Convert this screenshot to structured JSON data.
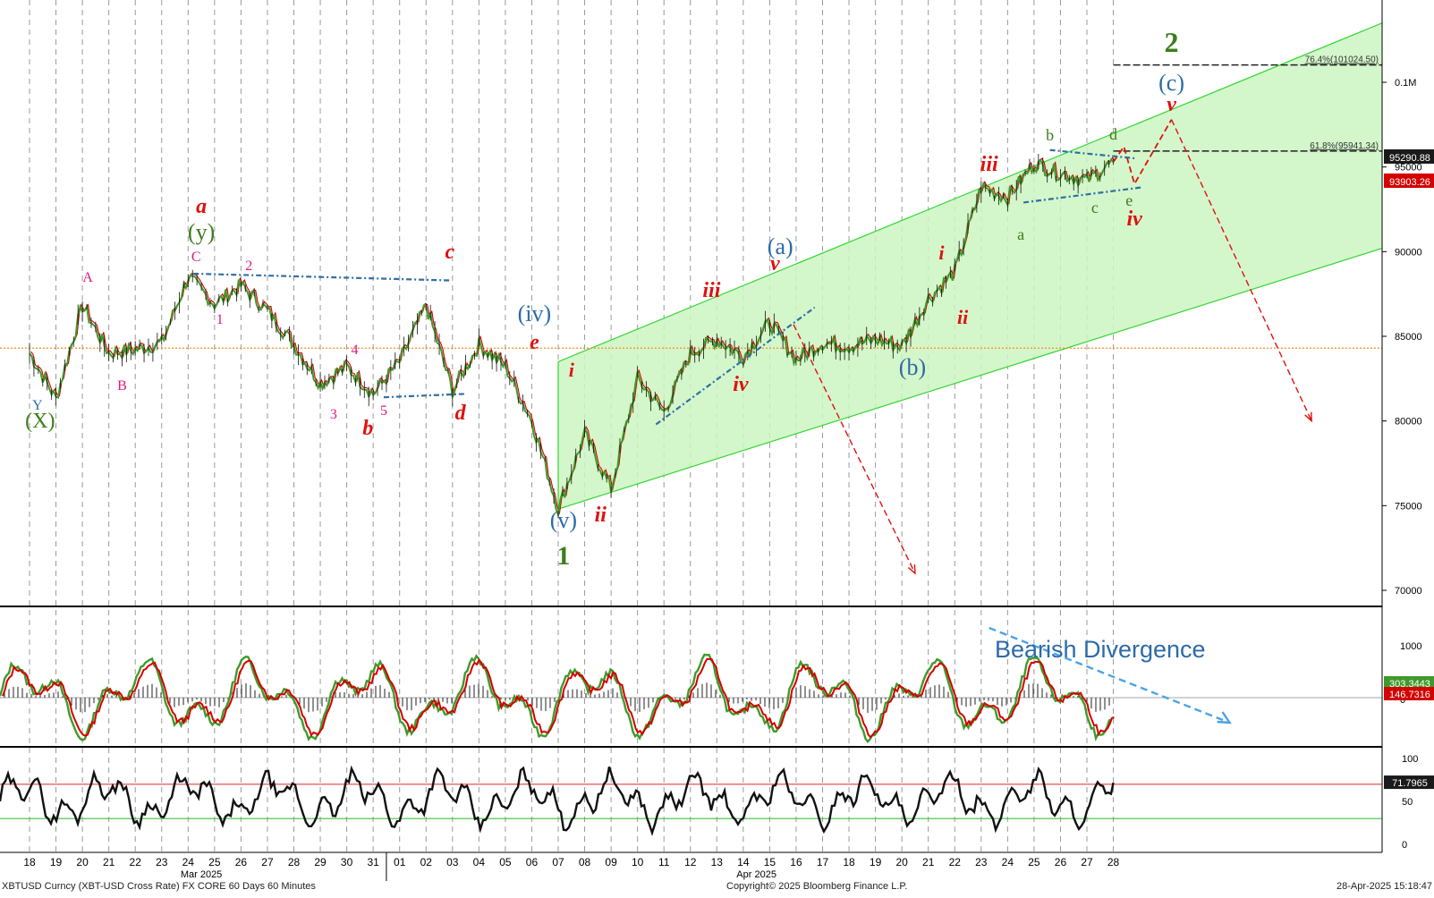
{
  "colors": {
    "price_line": "#3f9a2b",
    "price_red": "#d40000",
    "channel_fill": "#ccf5c2",
    "channel_line": "#33d633",
    "wave_red": "#e0100f",
    "wave_green": "#3d7d1a",
    "wave_blue": "#2c6ba8",
    "wave_pink": "#e0197d",
    "fib_line": "#222222",
    "support_line": "#ff8c1a",
    "trend_blue": "#2f6fa3",
    "divergence": "#4aa3e8",
    "rsi_upper": "#e04040",
    "rsi_lower": "#40c040"
  },
  "chart_data": [
    {
      "type": "line",
      "panel": "price",
      "series": [
        {
          "values": [
            {
              "x": "18",
              "y": 84000
            },
            {
              "x": "19",
              "y": 81300
            },
            {
              "x": "20",
              "y": 86800
            },
            {
              "x": "21",
              "y": 84000
            },
            {
              "x": "22",
              "y": 84200
            },
            {
              "x": "23",
              "y": 84600
            },
            {
              "x": "24",
              "y": 88500
            },
            {
              "x": "25",
              "y": 86900
            },
            {
              "x": "26",
              "y": 88000
            },
            {
              "x": "27",
              "y": 86500
            },
            {
              "x": "28",
              "y": 84500
            },
            {
              "x": "29",
              "y": 82200
            },
            {
              "x": "30",
              "y": 83200
            },
            {
              "x": "31",
              "y": 81600
            },
            {
              "x": "01",
              "y": 83500
            },
            {
              "x": "02",
              "y": 86800
            },
            {
              "x": "03",
              "y": 81800
            },
            {
              "x": "04",
              "y": 84500
            },
            {
              "x": "05",
              "y": 83200
            },
            {
              "x": "06",
              "y": 80000
            },
            {
              "x": "07",
              "y": 74800
            },
            {
              "x": "08",
              "y": 79200
            },
            {
              "x": "09",
              "y": 76000
            },
            {
              "x": "10",
              "y": 82500
            },
            {
              "x": "11",
              "y": 80500
            },
            {
              "x": "12",
              "y": 84000
            },
            {
              "x": "13",
              "y": 84800
            },
            {
              "x": "14",
              "y": 83800
            },
            {
              "x": "15",
              "y": 85800
            },
            {
              "x": "16",
              "y": 83600
            },
            {
              "x": "17",
              "y": 84600
            },
            {
              "x": "18",
              "y": 84400
            },
            {
              "x": "19",
              "y": 84800
            },
            {
              "x": "20",
              "y": 84400
            },
            {
              "x": "21",
              "y": 87200
            },
            {
              "x": "22",
              "y": 88800
            },
            {
              "x": "23",
              "y": 93800
            },
            {
              "x": "24",
              "y": 93200
            },
            {
              "x": "25",
              "y": 95200
            },
            {
              "x": "26",
              "y": 94600
            },
            {
              "x": "27",
              "y": 94200
            },
            {
              "x": "28",
              "y": 95290.88
            }
          ]
        }
      ],
      "y_ticks": [
        "0.1M",
        "95000",
        "90000",
        "85000",
        "80000",
        "75000",
        "70000"
      ],
      "ylim": [
        69000,
        103500
      ],
      "price_labels": [
        "95290.88",
        "93903.26"
      ],
      "fib_levels": [
        {
          "label": "76.4%(101024.50)",
          "value": 101024.5
        },
        {
          "label": "61.8%(95941.34)",
          "value": 95941.34
        }
      ],
      "support_level": 84300,
      "projection_points": [
        95290.88,
        96200,
        94000,
        97800
      ],
      "projection_bearish": [
        {
          "from": 85700,
          "to": 71000,
          "x_from": "15",
          "x_to": "20"
        },
        {
          "from": 97800,
          "to": 80000,
          "x_from": "30-Apr",
          "x_to": "+7"
        }
      ],
      "channel": {
        "lower_start": 74800,
        "lower_end": 90200,
        "upper_start": 83500,
        "upper_end": 103500
      },
      "wave_labels": [
        {
          "text": "a",
          "color": "wave_red",
          "style": "italic"
        },
        {
          "text": "(y)",
          "color": "wave_green"
        },
        {
          "text": "C",
          "color": "wave_pink"
        },
        {
          "text": "2",
          "color": "wave_pink"
        },
        {
          "text": "1",
          "color": "wave_pink"
        },
        {
          "text": "A",
          "color": "wave_pink"
        },
        {
          "text": "B",
          "color": "wave_pink"
        },
        {
          "text": "Y",
          "color": "wave_blue"
        },
        {
          "text": "(X)",
          "color": "wave_green"
        },
        {
          "text": "3",
          "color": "wave_pink"
        },
        {
          "text": "4",
          "color": "wave_pink"
        },
        {
          "text": "5",
          "color": "wave_pink"
        },
        {
          "text": "b",
          "color": "wave_red",
          "style": "italic"
        },
        {
          "text": "c",
          "color": "wave_red",
          "style": "italic"
        },
        {
          "text": "d",
          "color": "wave_red",
          "style": "italic"
        },
        {
          "text": "e",
          "color": "wave_red",
          "style": "italic"
        },
        {
          "text": "(iv)",
          "color": "wave_blue"
        },
        {
          "text": "(v)",
          "color": "wave_blue"
        },
        {
          "text": "1",
          "color": "wave_green",
          "style": "bold"
        },
        {
          "text": "i",
          "color": "wave_red",
          "style": "italic"
        },
        {
          "text": "ii",
          "color": "wave_red",
          "style": "italic"
        },
        {
          "text": "iii",
          "color": "wave_red",
          "style": "italic"
        },
        {
          "text": "iv",
          "color": "wave_red",
          "style": "italic"
        },
        {
          "text": "v",
          "color": "wave_red",
          "style": "italic"
        },
        {
          "text": "(a)",
          "color": "wave_blue"
        },
        {
          "text": "(b)",
          "color": "wave_blue"
        },
        {
          "text": "i",
          "color": "wave_red",
          "style": "italic"
        },
        {
          "text": "ii",
          "color": "wave_red",
          "style": "italic"
        },
        {
          "text": "iii",
          "color": "wave_red",
          "style": "italic"
        },
        {
          "text": "a",
          "color": "wave_green"
        },
        {
          "text": "b",
          "color": "wave_green"
        },
        {
          "text": "c",
          "color": "wave_green"
        },
        {
          "text": "d",
          "color": "wave_green"
        },
        {
          "text": "e",
          "color": "wave_green"
        },
        {
          "text": "iv",
          "color": "wave_red",
          "style": "italic"
        },
        {
          "text": "v",
          "color": "wave_red",
          "style": "italic"
        },
        {
          "text": "(c)",
          "color": "wave_blue"
        },
        {
          "text": "2",
          "color": "wave_green",
          "style": "bold"
        }
      ]
    },
    {
      "type": "line",
      "panel": "oscillator",
      "y_ticks": [
        "1000",
        "0"
      ],
      "value_labels": [
        "303.3443",
        "146.7316"
      ],
      "annotation": "Bearish Divergence"
    },
    {
      "type": "line",
      "panel": "rsi",
      "y_ticks": [
        "100",
        "50",
        "0"
      ],
      "value_label": "71.7965",
      "levels": [
        70,
        30
      ]
    }
  ],
  "x_axis": {
    "day_labels": [
      "18",
      "19",
      "20",
      "21",
      "22",
      "23",
      "24",
      "25",
      "26",
      "27",
      "28",
      "29",
      "30",
      "31",
      "01",
      "02",
      "03",
      "04",
      "05",
      "06",
      "07",
      "08",
      "09",
      "10",
      "11",
      "12",
      "13",
      "14",
      "15",
      "16",
      "17",
      "18",
      "19",
      "20",
      "21",
      "22",
      "23",
      "24",
      "25",
      "26",
      "27",
      "28"
    ],
    "month_labels": [
      "Mar 2025",
      "Apr 2025"
    ]
  },
  "footer": {
    "left": "XBTUSD Curncy (XBT-USD Cross Rate) FX CORE 60 Days 60 Minutes",
    "center": "Copyright© 2025 Bloomberg Finance L.P.",
    "right": "28-Apr-2025 15:18:47"
  }
}
